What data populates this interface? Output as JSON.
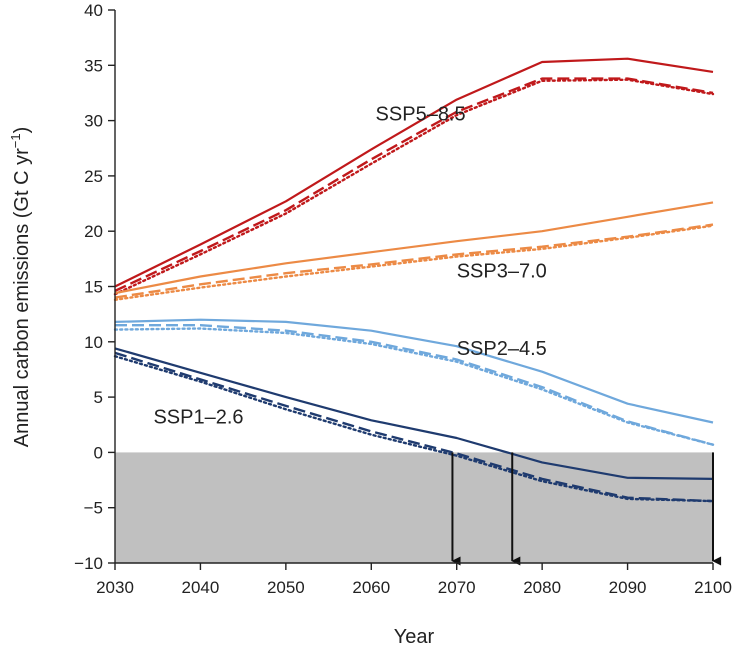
{
  "chart_data": {
    "type": "line",
    "xlabel": "Year",
    "ylabel": "Annual carbon emissions (Gt C yr",
    "ylabel_sup": "−1",
    "ylabel_close": ")",
    "xlim": [
      2030,
      2100
    ],
    "ylim": [
      -10,
      40
    ],
    "x": [
      2030,
      2040,
      2050,
      2060,
      2070,
      2080,
      2090,
      2100
    ],
    "xticks": [
      "2030",
      "2040",
      "2050",
      "2060",
      "2070",
      "2080",
      "2090",
      "2100"
    ],
    "yticks": [
      "−10",
      "−5",
      "0",
      "5",
      "10",
      "15",
      "20",
      "25",
      "30",
      "35",
      "40"
    ],
    "negative_region_shaded": true,
    "negative_region_color": "#c0c0c0",
    "line_styles": [
      "solid",
      "dashed",
      "dotted"
    ],
    "arrows_at_x": [
      2069.5,
      2076.5,
      2100
    ],
    "series": [
      {
        "label": "SSP5–8.5",
        "color": "#c0191b",
        "solid": [
          15.0,
          18.8,
          22.7,
          27.4,
          31.9,
          35.3,
          35.6,
          34.4
        ],
        "dashed": [
          14.6,
          18.2,
          21.9,
          26.5,
          30.8,
          33.8,
          33.8,
          32.5
        ],
        "dotted": [
          14.3,
          17.9,
          21.6,
          26.1,
          30.5,
          33.6,
          33.7,
          32.4
        ]
      },
      {
        "label": "SSP3–7.0",
        "color": "#ec8a45",
        "solid": [
          14.4,
          15.9,
          17.1,
          18.1,
          19.1,
          20.0,
          21.3,
          22.6
        ],
        "dashed": [
          14.0,
          15.2,
          16.2,
          17.0,
          17.9,
          18.6,
          19.5,
          20.6
        ],
        "dotted": [
          13.8,
          14.9,
          15.9,
          16.8,
          17.7,
          18.4,
          19.4,
          20.5
        ]
      },
      {
        "label": "SSP2–4.5",
        "color": "#6fa8dc",
        "solid": [
          11.8,
          12.0,
          11.8,
          11.0,
          9.6,
          7.3,
          4.4,
          2.7
        ],
        "dashed": [
          11.5,
          11.5,
          11.0,
          10.0,
          8.4,
          5.9,
          2.8,
          0.7
        ],
        "dotted": [
          11.1,
          11.2,
          10.8,
          9.8,
          8.2,
          5.7,
          2.7,
          0.7
        ]
      },
      {
        "label": "SSP1–2.6",
        "color": "#1f3b6f",
        "solid": [
          9.4,
          7.2,
          5.0,
          2.9,
          1.3,
          -0.9,
          -2.3,
          -2.4
        ],
        "dashed": [
          9.0,
          6.6,
          4.2,
          1.9,
          -0.1,
          -2.4,
          -4.1,
          -4.4
        ],
        "dotted": [
          8.7,
          6.4,
          3.9,
          1.6,
          -0.3,
          -2.6,
          -4.2,
          -4.4
        ]
      }
    ]
  }
}
